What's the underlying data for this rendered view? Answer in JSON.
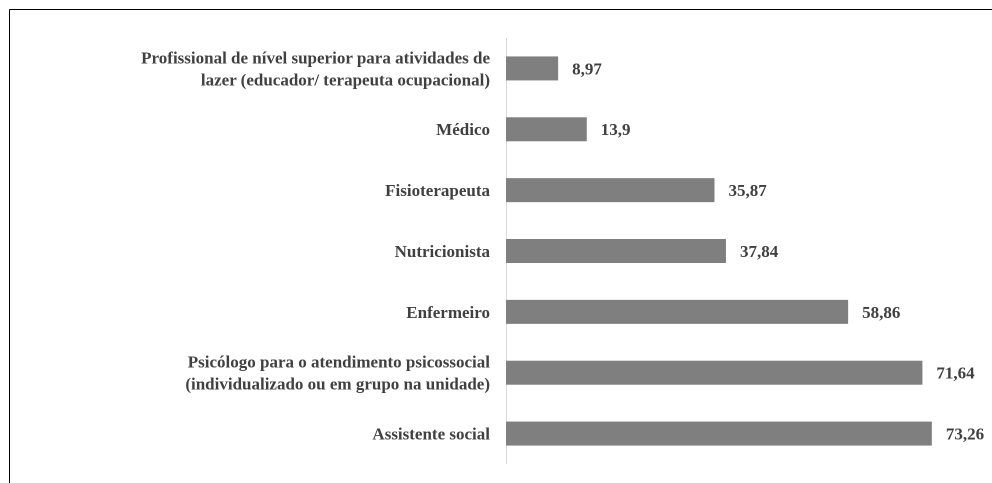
{
  "chart_data": {
    "type": "barh",
    "categories": [
      [
        "Profissional de nível superior para atividades de",
        "lazer (educador/ terapeuta ocupacional)"
      ],
      [
        "Médico"
      ],
      [
        "Fisioterapeuta"
      ],
      [
        "Nutricionista"
      ],
      [
        "Enfermeiro"
      ],
      [
        "Psicólogo para o atendimento psicossocial",
        "(individualizado ou em grupo na unidade)"
      ],
      [
        "Assistente social"
      ]
    ],
    "values": [
      8.97,
      13.9,
      35.87,
      37.84,
      58.86,
      71.64,
      73.26
    ],
    "value_labels": [
      "8,97",
      "13,9",
      "35,87",
      "37,84",
      "58,86",
      "71,64",
      "73,26"
    ],
    "color": "#7f7f7f",
    "xlim": [
      0,
      80
    ]
  }
}
